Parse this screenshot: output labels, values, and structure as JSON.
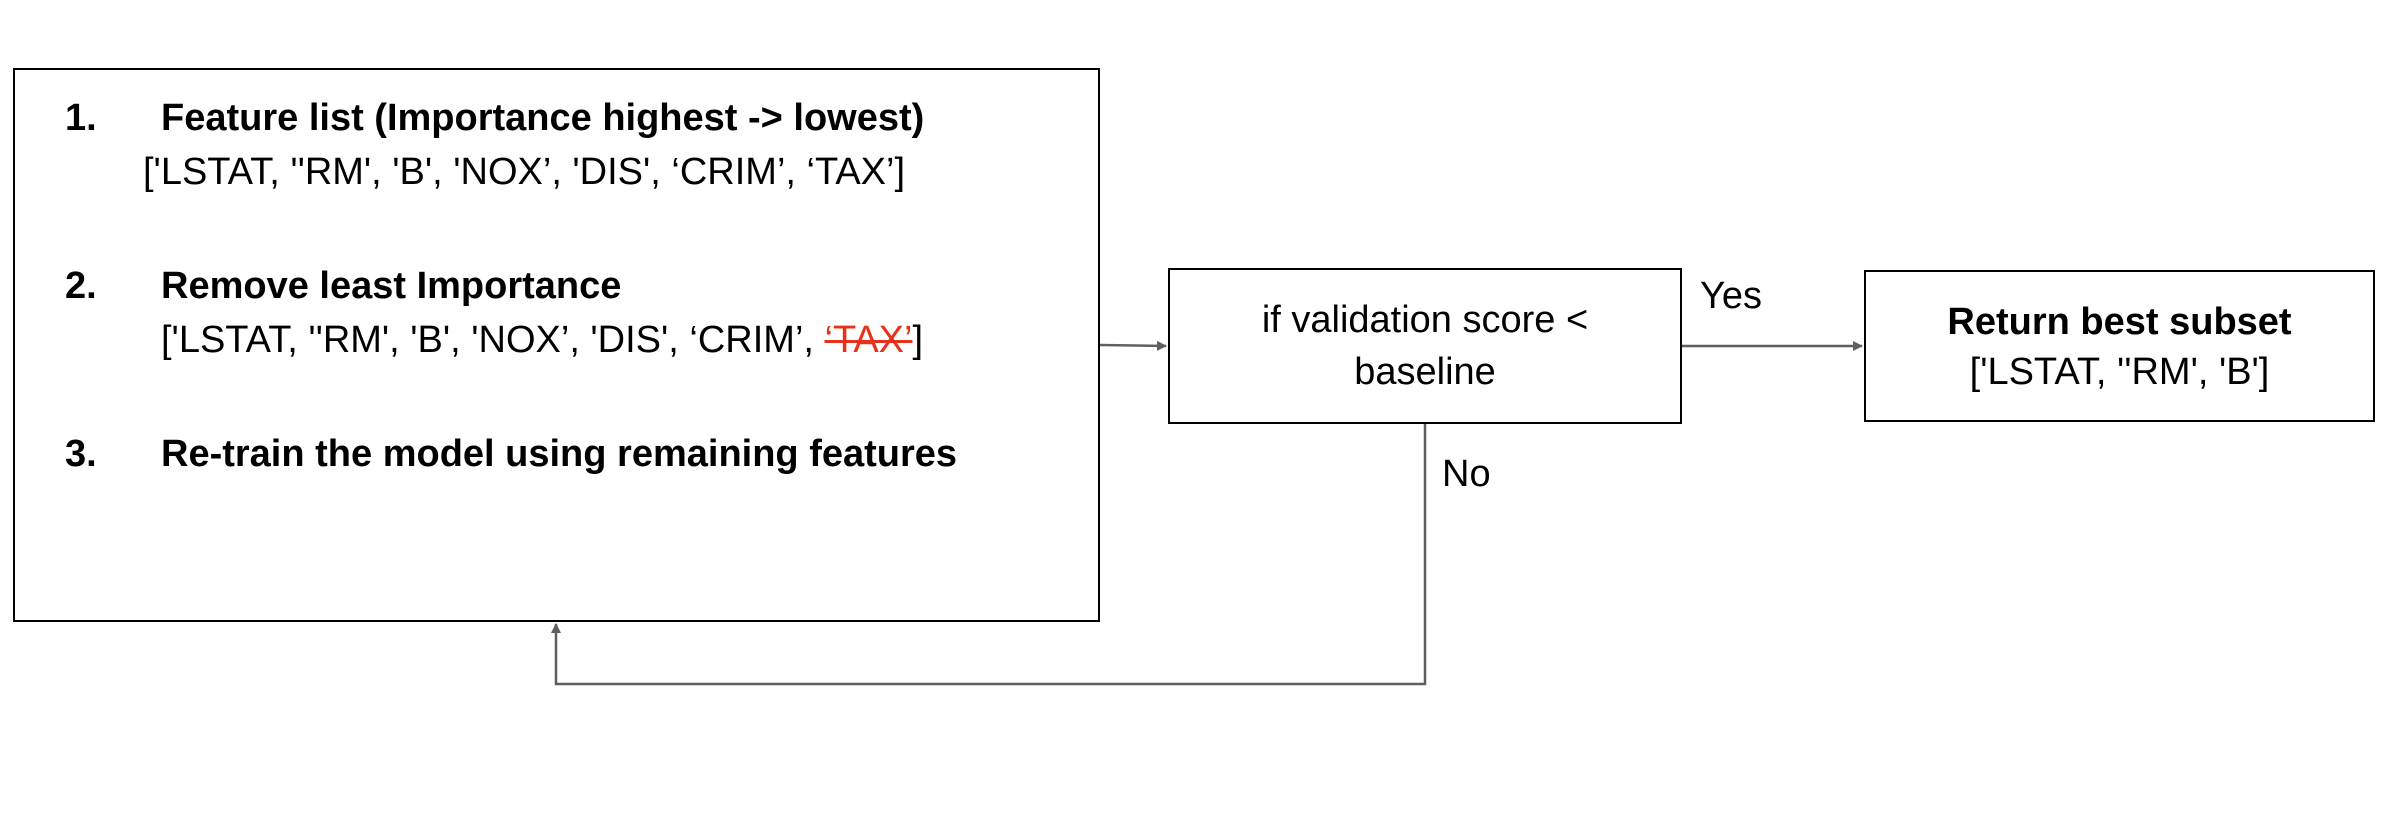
{
  "process": {
    "steps": [
      {
        "number": "1.",
        "title": "Feature list (Importance highest -> lowest)",
        "list": "['LSTAT,  ''RM', 'B', 'NOX’, 'DIS', ‘CRIM’, ‘TAX’]"
      },
      {
        "number": "2.",
        "title": "Remove least Importance",
        "list_prefix": "['LSTAT,  ''RM', 'B', 'NOX’, 'DIS', ‘CRIM’, ",
        "list_removed": "‘TAX’",
        "list_suffix": "]"
      },
      {
        "number": "3.",
        "title": "Re-train the model using remaining features"
      }
    ]
  },
  "decision": {
    "line1": "if validation score <",
    "line2": "baseline"
  },
  "result": {
    "title": "Return best subset",
    "list": "['LSTAT,  ''RM', 'B']"
  },
  "edges": {
    "yes_label": "Yes",
    "no_label": "No"
  },
  "colors": {
    "removed_feature": "#e8311a",
    "arrow": "#5f5f5f"
  }
}
